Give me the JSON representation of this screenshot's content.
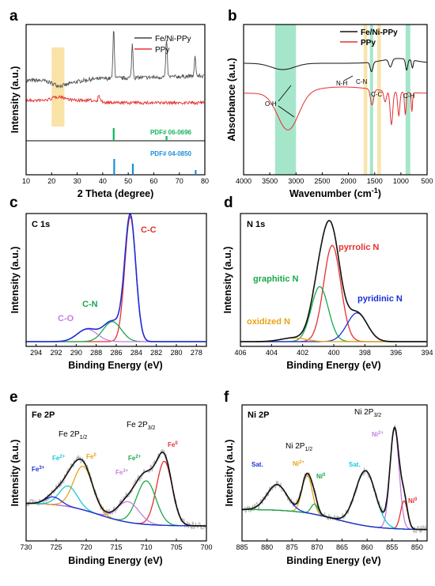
{
  "figure": {
    "panel_labels": [
      "a",
      "b",
      "c",
      "d",
      "e",
      "f"
    ]
  },
  "colors": {
    "black": "#222222",
    "red": "#e53030",
    "green": "#1aa84a",
    "blue": "#1a2fd8",
    "purple": "#c77de0",
    "cyan": "#16c9d9",
    "orange": "#e8a317",
    "gray": "#b5b5b5",
    "hl_yellow": "#f7d98a",
    "hl_green": "#7fdcb5",
    "pdf_green": "#12b35a",
    "pdf_blue": "#1a8fd8"
  },
  "chart_data": [
    {
      "panel": "a",
      "type": "line",
      "xlabel": "2 Theta (degree)",
      "ylabel": "Intensity (a.u.)",
      "xlim": [
        10,
        80
      ],
      "xticks": [
        "10",
        "20",
        "30",
        "40",
        "50",
        "60",
        "70",
        "80"
      ],
      "legend": {
        "placement": "top-right",
        "entries": [
          "Fe/Ni-PPy",
          "PPy"
        ]
      },
      "series": [
        {
          "name": "Fe/Ni-PPy",
          "peaks_2theta": [
            44.3,
            51.6,
            65.0,
            76.2
          ],
          "broad_hump": [
            20,
            26
          ]
        },
        {
          "name": "PPy",
          "small_peaks": [
            22,
            25,
            38.5
          ]
        }
      ],
      "highlight_2theta": [
        20,
        25
      ],
      "references": [
        {
          "label": "PDF# 06-0696",
          "lines": [
            44.3,
            65.0
          ]
        },
        {
          "label": "PDF# 04-0850",
          "lines": [
            44.5,
            51.8,
            76.4
          ]
        }
      ]
    },
    {
      "panel": "b",
      "type": "line",
      "xlabel": "Wavenumber (cm",
      "xlabel_sup": "-1",
      "xlabel_end": ")",
      "ylabel": "Absorbance (a.u.)",
      "xlim": [
        4000,
        500
      ],
      "axis_reversed": true,
      "xticks": [
        "4000",
        "3500",
        "3000",
        "2500",
        "2000",
        "1500",
        "1000",
        "500"
      ],
      "legend": {
        "placement": "top-right",
        "entries": [
          "Fe/Ni-PPy",
          "PPy"
        ]
      },
      "series": [
        {
          "name": "Fe/Ni-PPy"
        },
        {
          "name": "PPy"
        }
      ],
      "bands": [
        "O-H",
        "N-H",
        "C-N",
        "C-C",
        "C-H"
      ],
      "band_regions": [
        [
          3400,
          3000
        ],
        [
          1710,
          1640
        ],
        [
          1590,
          1530
        ],
        [
          1450,
          1380
        ],
        [
          910,
          820
        ]
      ]
    },
    {
      "panel": "c",
      "type": "line",
      "title": "C 1s",
      "xlabel": "Binding Energy (eV)",
      "ylabel": "Intensity (a.u.)",
      "xlim": [
        295,
        277
      ],
      "axis_reversed": true,
      "xticks": [
        "294",
        "292",
        "290",
        "288",
        "286",
        "284",
        "282",
        "280",
        "278"
      ],
      "components": [
        {
          "name": "C-C",
          "center": 284.6,
          "height": 1.0
        },
        {
          "name": "C-N",
          "center": 286.4,
          "height": 0.16
        },
        {
          "name": "C-O",
          "center": 288.9,
          "height": 0.1
        }
      ]
    },
    {
      "panel": "d",
      "type": "line",
      "title": "N 1s",
      "xlabel": "Binding Energy (eV)",
      "ylabel": "Intensity (a.u.)",
      "xlim": [
        406,
        394
      ],
      "axis_reversed": true,
      "xticks": [
        "406",
        "404",
        "402",
        "400",
        "398",
        "396",
        "394"
      ],
      "components": [
        {
          "name": "pyrrolic N",
          "center": 400.1,
          "height": 0.77
        },
        {
          "name": "graphitic N",
          "center": 400.9,
          "height": 0.44
        },
        {
          "name": "pyridinic N",
          "center": 398.5,
          "height": 0.23
        },
        {
          "name": "oxidized N",
          "center": 402.6,
          "height": 0.03
        }
      ]
    },
    {
      "panel": "e",
      "type": "line",
      "title": "Fe 2P",
      "xlabel": "Binding Energy (eV)",
      "ylabel": "Intensity (a.u.)",
      "xlim": [
        730,
        700
      ],
      "axis_reversed": true,
      "xticks": [
        "730",
        "725",
        "720",
        "715",
        "710",
        "705",
        "700"
      ],
      "labels": {
        "fe2p12": "Fe 2P",
        "fe2p12_sub": "1/2",
        "fe2p32": "Fe 2P",
        "fe2p32_sub": "3/2",
        "fe3p_hi": "Fe",
        "fe2p_hi": "Fe",
        "fe0_hi": "Fe",
        "fe3p_lo": "Fe",
        "fe2p_lo": "Fe",
        "fe0_lo": "Fe",
        "sup3": "3+",
        "sup2": "2+",
        "sup0": "0"
      },
      "components": [
        {
          "name": "Fe0 2p3/2",
          "center": 707.0,
          "height": 0.5
        },
        {
          "name": "Fe2+ 2p3/2",
          "center": 710.0,
          "height": 0.34
        },
        {
          "name": "Fe3+ 2p3/2",
          "center": 713.0,
          "height": 0.16
        },
        {
          "name": "Fe0 2p1/2",
          "center": 720.5,
          "height": 0.34
        },
        {
          "name": "Fe2+ 2p1/2",
          "center": 723.0,
          "height": 0.16
        },
        {
          "name": "Fe3+ 2p1/2",
          "center": 725.5,
          "height": 0.06
        }
      ]
    },
    {
      "panel": "f",
      "type": "line",
      "title": "Ni 2P",
      "xlabel": "Binding Energy (eV)",
      "ylabel": "Intensity (a.u.)",
      "xlim": [
        885,
        848
      ],
      "axis_reversed": true,
      "xticks": [
        "885",
        "880",
        "875",
        "870",
        "865",
        "860",
        "855",
        "850"
      ],
      "labels": {
        "ni2p12": "Ni 2P",
        "ni2p12_sub": "1/2",
        "ni2p32": "Ni 2P",
        "ni2p32_sub": "3/2",
        "sat1": "Sat.",
        "sat2": "Sat.",
        "ni2p_hi": "Ni",
        "ni0_hi": "Ni",
        "ni2p_lo": "Ni",
        "ni0_lo": "Ni",
        "sup2": "2+",
        "sup0": "0"
      },
      "components": [
        {
          "name": "Ni2+ 2p3/2",
          "center": 854.5,
          "height": 0.78
        },
        {
          "name": "Ni0 2p3/2",
          "center": 852.6,
          "height": 0.22
        },
        {
          "name": "Sat. 2p3/2",
          "center": 860.3,
          "height": 0.43
        },
        {
          "name": "Ni2+ 2p1/2",
          "center": 872.0,
          "height": 0.3
        },
        {
          "name": "Ni0 2p1/2",
          "center": 870.5,
          "height": 0.08
        },
        {
          "name": "Sat. 2p1/2",
          "center": 878.0,
          "height": 0.2
        }
      ]
    }
  ]
}
